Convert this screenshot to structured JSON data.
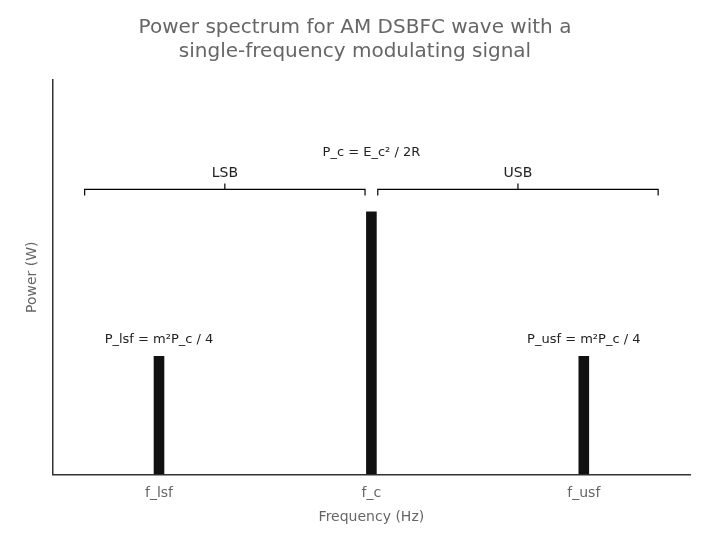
{
  "chart_data": {
    "type": "bar",
    "title": [
      "Power spectrum for AM DSBFC wave with a",
      "single-frequency modulating signal"
    ],
    "xlabel": "Frequency (Hz)",
    "ylabel": "Power (W)",
    "categories": [
      "f_lsf",
      "f_c",
      "f_usf"
    ],
    "values": [
      0.45,
      1.0,
      0.45
    ],
    "color": "#111111",
    "ylim": [
      0,
      1.5
    ],
    "yticks": [],
    "tick_labels": "x",
    "grid": false,
    "annotations": [
      "P_c = E_c² / 2R",
      "LSB",
      "USB",
      "P_lsf = m²P_c / 4",
      "P_usf = m²P_c / 4"
    ]
  }
}
